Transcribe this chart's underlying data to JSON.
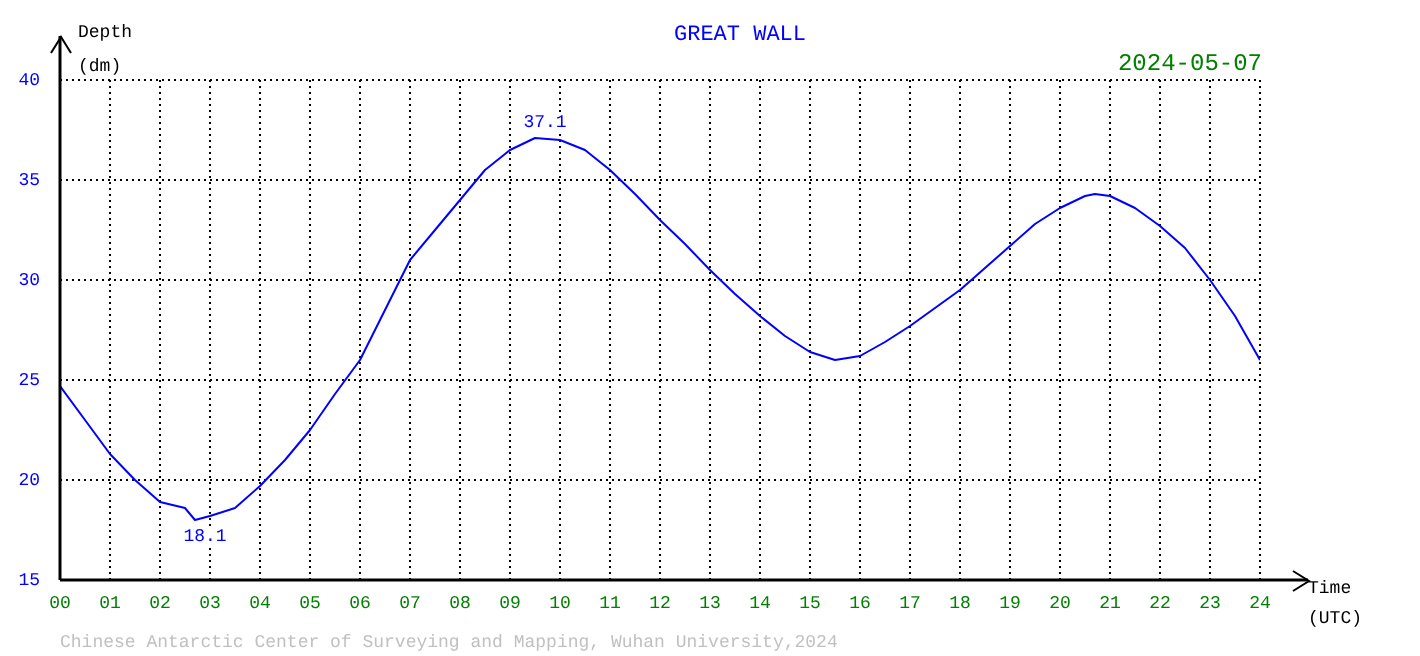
{
  "chart_data": {
    "type": "line",
    "title": "GREAT WALL",
    "subtitle": "2024-05-07",
    "xlabel": "Time (UTC)",
    "ylabel": "Depth (dm)",
    "x": [
      0,
      0.5,
      1,
      1.5,
      2,
      2.5,
      2.7,
      3,
      3.5,
      4,
      4.5,
      5,
      5.5,
      6,
      6.5,
      7,
      7.5,
      8,
      8.5,
      9,
      9.5,
      10,
      10.5,
      11,
      11.5,
      12,
      12.5,
      13,
      13.5,
      14,
      14.5,
      15,
      15.5,
      16,
      16.5,
      17,
      17.5,
      18,
      18.5,
      19,
      19.5,
      20,
      20.5,
      20.7,
      21,
      21.5,
      22,
      22.5,
      23,
      23.5,
      24
    ],
    "series": [
      {
        "color": "#0000ff",
        "values": [
          24.7,
          23.0,
          21.3,
          20.0,
          18.9,
          18.6,
          18.0,
          18.2,
          18.6,
          19.7,
          21.0,
          22.5,
          24.3,
          26.0,
          28.5,
          31.0,
          32.5,
          34.0,
          35.5,
          36.5,
          37.1,
          37.0,
          36.5,
          35.5,
          34.3,
          33.0,
          31.8,
          30.5,
          29.3,
          28.2,
          27.2,
          26.4,
          26.0,
          26.2,
          26.9,
          27.7,
          28.6,
          29.5,
          30.6,
          31.7,
          32.8,
          33.6,
          34.2,
          34.3,
          34.2,
          33.6,
          32.7,
          31.6,
          30.0,
          28.2,
          26.0
        ]
      }
    ],
    "xlim": [
      0,
      24
    ],
    "xticks": [
      {
        "value": 0,
        "label": "00"
      },
      {
        "value": 1,
        "label": "01"
      },
      {
        "value": 2,
        "label": "02"
      },
      {
        "value": 3,
        "label": "03"
      },
      {
        "value": 4,
        "label": "04"
      },
      {
        "value": 5,
        "label": "05"
      },
      {
        "value": 6,
        "label": "06"
      },
      {
        "value": 7,
        "label": "07"
      },
      {
        "value": 8,
        "label": "08"
      },
      {
        "value": 9,
        "label": "09"
      },
      10,
      11,
      12,
      13,
      14,
      15,
      16,
      17,
      18,
      19,
      20,
      21,
      22,
      23,
      24
    ],
    "ylim": [
      15,
      40
    ],
    "yticks": [
      15,
      20,
      25,
      30,
      35,
      40
    ],
    "grid": true,
    "marker": "none",
    "line_style": "solid",
    "legend": false,
    "annotations": [
      {
        "text": "37.1",
        "x": 9.7,
        "y": 37.1
      },
      {
        "text": "18.1",
        "x": 2.9,
        "y": 18.1
      },
      "Chinese Antarctic Center of Surveying and Mapping, Wuhan University,2024"
    ]
  }
}
